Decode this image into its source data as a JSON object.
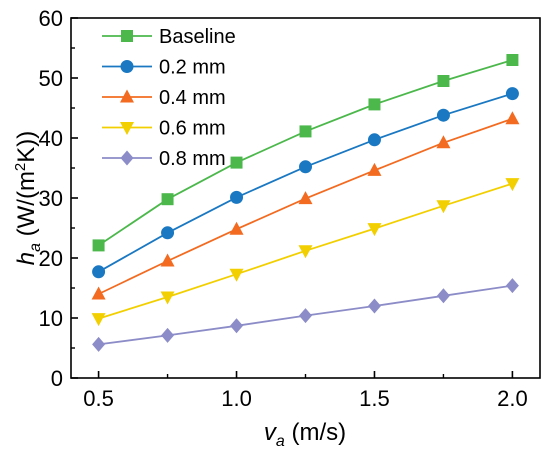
{
  "chart_data": {
    "type": "line",
    "x": [
      0.5,
      0.75,
      1.0,
      1.25,
      1.5,
      1.75,
      2.0
    ],
    "xlim": [
      0.4,
      2.1
    ],
    "ylim": [
      0,
      60
    ],
    "xticks": [
      "0.5",
      "1.0",
      "1.5",
      "2.0"
    ],
    "yticks": [
      "0",
      "10",
      "20",
      "30",
      "40",
      "50",
      "60"
    ],
    "xlabel": {
      "symbol": "v",
      "sub": "a",
      "unit": " (m/s)"
    },
    "ylabel": {
      "symbol": "h",
      "sub": "a",
      "unit_pre": " (W/(m",
      "sup": "2",
      "unit_post": "K))"
    },
    "grid": false,
    "legend_position": "top-left",
    "series": [
      {
        "name": "Baseline",
        "color": "#4CB84C",
        "marker": "square",
        "values": [
          22.1,
          29.8,
          35.9,
          41.1,
          45.6,
          49.5,
          53.0
        ]
      },
      {
        "name": "0.2 mm",
        "color": "#1A78C2",
        "marker": "circle",
        "values": [
          17.7,
          24.2,
          30.1,
          35.2,
          39.7,
          43.8,
          47.4
        ]
      },
      {
        "name": "0.4 mm",
        "color": "#F26B21",
        "marker": "triangle-up",
        "values": [
          14.0,
          19.5,
          24.8,
          29.9,
          34.6,
          39.2,
          43.2
        ]
      },
      {
        "name": "0.6 mm",
        "color": "#F2CF00",
        "marker": "triangle-down",
        "values": [
          9.9,
          13.5,
          17.3,
          21.2,
          24.9,
          28.7,
          32.4
        ]
      },
      {
        "name": "0.8 mm",
        "color": "#8C8CC8",
        "marker": "diamond",
        "values": [
          5.6,
          7.1,
          8.7,
          10.4,
          12.0,
          13.7,
          15.4
        ]
      }
    ]
  }
}
